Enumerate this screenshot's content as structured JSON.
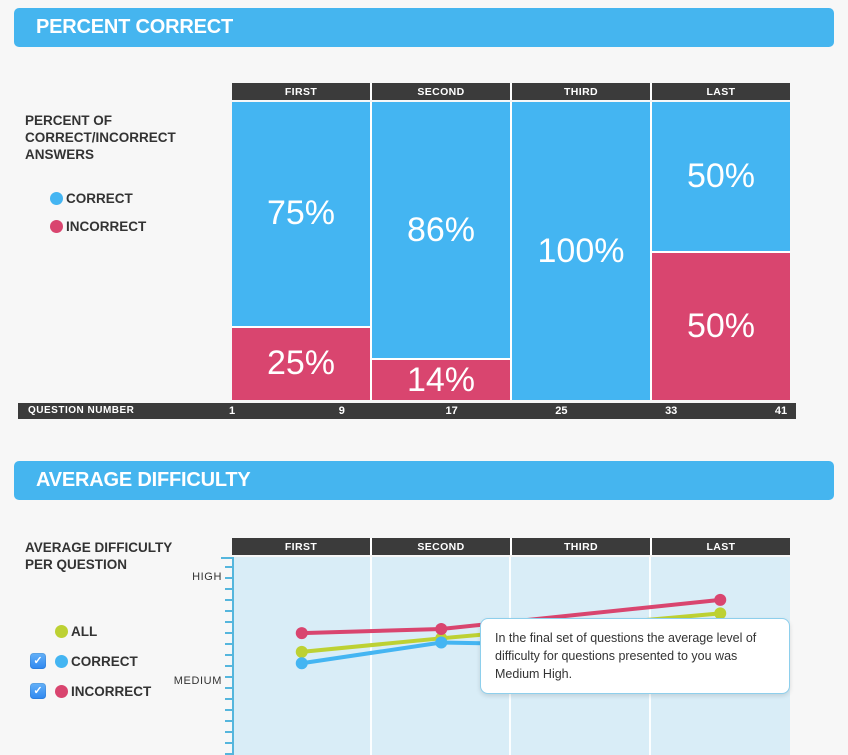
{
  "icons": {
    "checkmark": "✓"
  },
  "colors": {
    "header_blue": "#45b5ef",
    "correct_blue": "#44b5f2",
    "incorrect_pink": "#d9456f",
    "all_green": "#bdd133",
    "dark_bar": "#3b3b3b",
    "plot_bg": "#d9edf7",
    "axis_blue": "#55b6dd"
  },
  "section_percent_correct": {
    "header": "PERCENT CORRECT",
    "panel_title_lines": [
      "PERCENT OF",
      "CORRECT/INCORRECT",
      "ANSWERS"
    ],
    "legend": [
      {
        "label": "CORRECT",
        "color": "#44b5f2",
        "checkbox": false
      },
      {
        "label": "INCORRECT",
        "color": "#d9456f",
        "checkbox": false
      }
    ]
  },
  "section_average_difficulty": {
    "header": "AVERAGE DIFFICULTY",
    "panel_title_lines": [
      "AVERAGE DIFFICULTY",
      "PER QUESTION"
    ],
    "legend": [
      {
        "label": "ALL",
        "color": "#bdd133",
        "checkbox": false
      },
      {
        "label": "CORRECT",
        "color": "#44b5f2",
        "checkbox": true,
        "checked": true
      },
      {
        "label": "INCORRECT",
        "color": "#d9456f",
        "checkbox": true,
        "checked": true
      }
    ],
    "tooltip": "In the final set of questions the average level of difficulty for questions presented to you was Medium High."
  },
  "chart_data": [
    {
      "type": "bar",
      "stacked": true,
      "title": "PERCENT CORRECT",
      "categories": [
        "FIRST",
        "SECOND",
        "THIRD",
        "LAST"
      ],
      "series": [
        {
          "name": "CORRECT",
          "color": "#44b5f2",
          "values": [
            75,
            86,
            100,
            50
          ],
          "labels": [
            "75%",
            "86%",
            "100%",
            "50%"
          ]
        },
        {
          "name": "INCORRECT",
          "color": "#d9456f",
          "values": [
            25,
            14,
            0,
            50
          ],
          "labels": [
            "25%",
            "14%",
            "",
            "50%"
          ]
        }
      ],
      "ylim": [
        0,
        100
      ],
      "x_axis": {
        "label": "QUESTION NUMBER",
        "ticks": [
          "1",
          "9",
          "17",
          "25",
          "33",
          "41"
        ]
      },
      "legend_position": "left"
    },
    {
      "type": "line",
      "title": "AVERAGE DIFFICULTY",
      "categories": [
        "FIRST",
        "SECOND",
        "THIRD",
        "LAST"
      ],
      "point_categories": [
        "FIRST",
        "SECOND",
        "LAST"
      ],
      "series": [
        {
          "name": "ALL",
          "color": "#bdd133",
          "values": [
            3.29,
            3.42,
            3.66
          ]
        },
        {
          "name": "CORRECT",
          "color": "#44b5f2",
          "values": [
            3.18,
            3.38,
            3.33
          ]
        },
        {
          "name": "INCORRECT",
          "color": "#d9456f",
          "values": [
            3.47,
            3.51,
            3.79
          ]
        }
      ],
      "y_axis": {
        "tick_labels": [
          "HIGH",
          "MEDIUM"
        ],
        "tick_values": [
          4,
          3
        ]
      },
      "grid": "vertical",
      "annotation": "In the final set of questions the average level of difficulty for questions presented to you was Medium High.",
      "legend_position": "left"
    }
  ]
}
